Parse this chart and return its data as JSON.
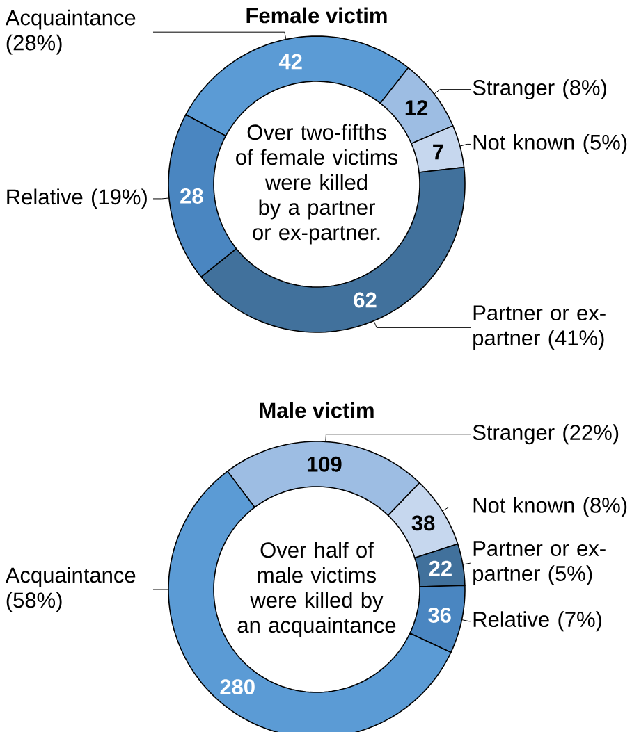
{
  "chart_data": [
    {
      "type": "donut",
      "title": "Female victim",
      "categories": [
        "Acquaintance (28%)",
        "Stranger (8%)",
        "Not known (5%)",
        "Partner or ex-partner (41%)",
        "Relative (19%)"
      ],
      "values": [
        42,
        12,
        7,
        62,
        28
      ],
      "colors": [
        "#5b9bd5",
        "#9dbde3",
        "#c6d7ee",
        "#41719c",
        "#4a86c1"
      ],
      "data_labels": true,
      "annotations": [
        "Over two-fifths of female victims were killed by a partner or ex-partner."
      ]
    },
    {
      "type": "donut",
      "title": "Male victim",
      "categories": [
        "Stranger (22%)",
        "Not known (8%)",
        "Partner or ex-partner (5%)",
        "Relative (7%)",
        "Acquaintance (58%)"
      ],
      "values": [
        109,
        38,
        22,
        36,
        280
      ],
      "colors": [
        "#9dbde3",
        "#c6d7ee",
        "#41719c",
        "#4a86c1",
        "#5b9bd5"
      ],
      "data_labels": true,
      "annotations": [
        "Over half of male victims were killed by an acquaintance"
      ]
    }
  ]
}
